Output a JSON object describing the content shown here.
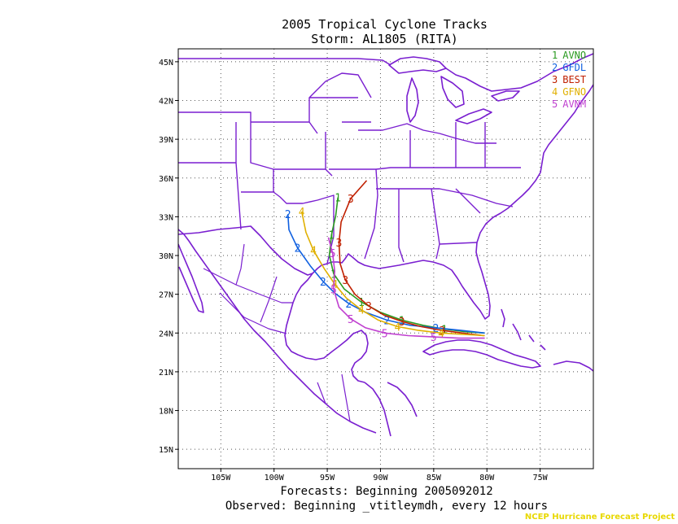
{
  "title_line1": "2005 Tropical Cyclone Tracks",
  "title_line2": "Storm: AL1805 (RITA)",
  "footer_line1": "Forecasts: Beginning 2005092012",
  "footer_line2": "Observed: Beginning _vtitleymdh, every 12 hours",
  "credit": "NCEP Hurricane Forecast Project",
  "colors": {
    "border": "#7a1fd0",
    "AVNO": "#2a9a20",
    "GFDL": "#1060e0",
    "BEST": "#c02000",
    "GFNO": "#e0b000",
    "AVNM": "#c040d0"
  },
  "chart_data": {
    "type": "line",
    "xlim": [
      -109,
      -70
    ],
    "ylim": [
      13.5,
      46
    ],
    "x_ticks": [
      {
        "value": -105,
        "label": "105W"
      },
      {
        "value": -100,
        "label": "100W"
      },
      {
        "value": -95,
        "label": "95W"
      },
      {
        "value": -90,
        "label": "90W"
      },
      {
        "value": -85,
        "label": "85W"
      },
      {
        "value": -80,
        "label": "80W"
      },
      {
        "value": -75,
        "label": "75W"
      }
    ],
    "y_ticks": [
      {
        "value": 15,
        "label": "15N"
      },
      {
        "value": 18,
        "label": "18N"
      },
      {
        "value": 21,
        "label": "21N"
      },
      {
        "value": 24,
        "label": "24N"
      },
      {
        "value": 27,
        "label": "27N"
      },
      {
        "value": 30,
        "label": "30N"
      },
      {
        "value": 33,
        "label": "33N"
      },
      {
        "value": 36,
        "label": "36N"
      },
      {
        "value": 39,
        "label": "39N"
      },
      {
        "value": 42,
        "label": "42N"
      },
      {
        "value": 45,
        "label": "45N"
      }
    ],
    "grid": true,
    "legend_position": "top-right",
    "series": [
      {
        "id": "1",
        "name": "AVNO",
        "color_key": "AVNO",
        "lon": [
          -80.2,
          -82.0,
          -84.0,
          -86.0,
          -88.0,
          -90.0,
          -91.8,
          -93.4,
          -94.4,
          -94.8,
          -94.6,
          -94.2,
          -94.0
        ],
        "lat": [
          24.0,
          24.1,
          24.3,
          24.6,
          25.0,
          25.6,
          26.4,
          27.4,
          28.6,
          30.0,
          31.6,
          33.1,
          34.5
        ]
      },
      {
        "id": "2",
        "name": "GFDL",
        "color_key": "GFDL",
        "lon": [
          -80.2,
          -82.4,
          -84.8,
          -87.2,
          -89.4,
          -91.4,
          -93.0,
          -94.3,
          -95.4,
          -96.6,
          -97.8,
          -98.6,
          -98.7
        ],
        "lat": [
          24.0,
          24.2,
          24.4,
          24.6,
          25.0,
          25.6,
          26.3,
          27.1,
          28.0,
          29.2,
          30.6,
          32.0,
          33.2
        ]
      },
      {
        "id": "3",
        "name": "BEST",
        "color_key": "BEST",
        "lon": [
          -80.3,
          -82.3,
          -84.2,
          -86.2,
          -88.0,
          -89.7,
          -91.1,
          -92.4,
          -93.3,
          -93.8,
          -93.9,
          -93.7,
          -92.8,
          -91.3
        ],
        "lat": [
          23.8,
          24.0,
          24.2,
          24.5,
          24.9,
          25.4,
          26.1,
          27.0,
          28.1,
          29.4,
          31.0,
          32.6,
          34.4,
          35.8
        ]
      },
      {
        "id": "4",
        "name": "GFNO",
        "color_key": "GFNO",
        "lon": [
          -80.2,
          -82.2,
          -84.3,
          -86.4,
          -88.4,
          -90.2,
          -91.8,
          -93.2,
          -94.3,
          -95.3,
          -96.3,
          -97.0,
          -97.4
        ],
        "lat": [
          23.8,
          23.9,
          24.0,
          24.2,
          24.5,
          25.0,
          25.8,
          26.7,
          27.8,
          29.0,
          30.4,
          31.8,
          33.4
        ]
      },
      {
        "id": "5",
        "name": "AVNM",
        "color_key": "AVNM",
        "lon": [
          -80.2,
          -82.6,
          -85.0,
          -87.4,
          -89.6,
          -91.4,
          -92.8,
          -93.9,
          -94.4,
          -94.3,
          -94.5,
          -94.9
        ],
        "lat": [
          23.6,
          23.6,
          23.7,
          23.8,
          24.0,
          24.4,
          25.1,
          26.0,
          27.4,
          28.8,
          30.2,
          31.4
        ]
      }
    ]
  }
}
